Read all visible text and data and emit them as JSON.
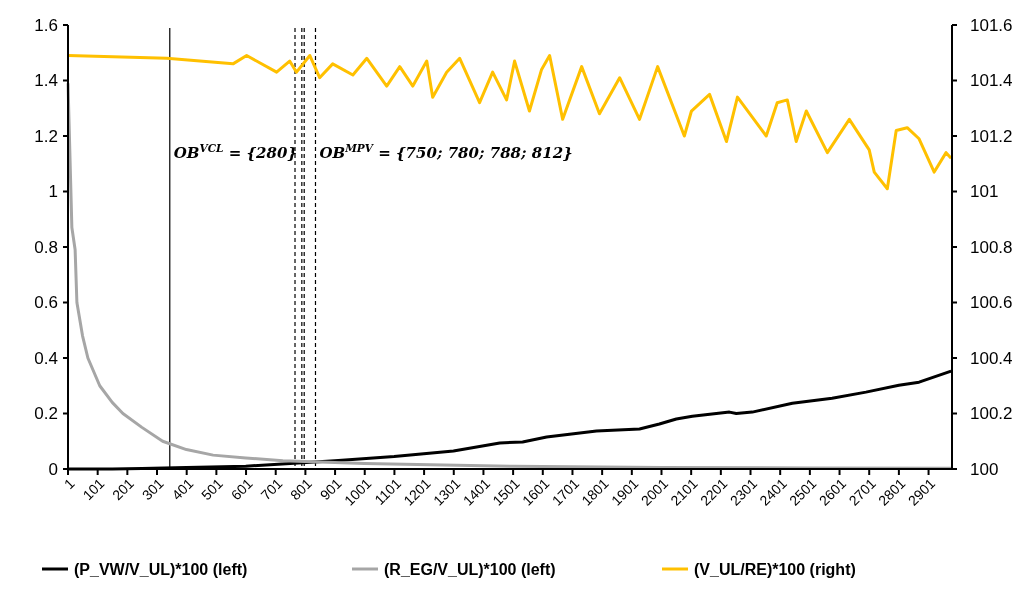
{
  "chart_data": {
    "type": "line",
    "xlim": [
      1,
      2980
    ],
    "xticks": [
      1,
      101,
      201,
      301,
      401,
      501,
      601,
      701,
      801,
      901,
      1001,
      1101,
      1201,
      1301,
      1401,
      1501,
      1601,
      1701,
      1801,
      1901,
      2001,
      2101,
      2201,
      2301,
      2401,
      2501,
      2601,
      2701,
      2801,
      2901
    ],
    "ylim": [
      0,
      1.6
    ],
    "yticks": [
      0,
      0.2,
      0.4,
      0.6,
      0.8,
      1,
      1.2,
      1.4,
      1.6
    ],
    "y2lim": [
      100,
      101.6
    ],
    "y2ticks": [
      100,
      100.2,
      100.4,
      100.6,
      100.8,
      101,
      101.2,
      101.4,
      101.6
    ],
    "series": [
      {
        "name": "(P_VW/V_UL)*100 (left)",
        "color": "#000000",
        "x": [
          1,
          150,
          250,
          400,
          600,
          750,
          900,
          1100,
          1300,
          1456,
          1533,
          1614,
          1782,
          1927,
          1994,
          2051,
          2105,
          2230,
          2253,
          2307,
          2442,
          2576,
          2690,
          2801,
          2869,
          2977
        ],
        "values": [
          0,
          0,
          0.002,
          0.005,
          0.01,
          0.02,
          0.03,
          0.045,
          0.065,
          0.094,
          0.097,
          0.115,
          0.137,
          0.144,
          0.162,
          0.18,
          0.19,
          0.205,
          0.2,
          0.205,
          0.237,
          0.255,
          0.277,
          0.302,
          0.313,
          0.353
        ]
      },
      {
        "name": "(R_EG/V_UL)*100 (left)",
        "color": "#a6a6a6",
        "x": [
          1,
          14,
          25,
          31,
          50,
          68,
          108,
          150,
          186,
          250,
          320,
          400,
          490,
          600,
          725,
          1000,
          1500,
          2000,
          2500,
          2977
        ],
        "values": [
          1.39,
          0.87,
          0.79,
          0.6,
          0.48,
          0.4,
          0.3,
          0.24,
          0.2,
          0.15,
          0.1,
          0.07,
          0.05,
          0.04,
          0.03,
          0.02,
          0.01,
          0.005,
          0.004,
          0.003
        ]
      },
      {
        "name": "(V_UL/RE)*100 (right)",
        "color": "#ffc000",
        "axis": "y2",
        "x": [
          1,
          334,
          557,
          603,
          704,
          748,
          771,
          816,
          849,
          893,
          961,
          1008,
          1075,
          1119,
          1163,
          1210,
          1230,
          1277,
          1321,
          1388,
          1432,
          1479,
          1506,
          1556,
          1597,
          1624,
          1668,
          1732,
          1792,
          1860,
          1927,
          1988,
          2078,
          2102,
          2163,
          2220,
          2257,
          2354,
          2391,
          2425,
          2455,
          2489,
          2560,
          2634,
          2701,
          2718,
          2762,
          2792,
          2829,
          2869,
          2920,
          2960,
          2977
        ],
        "values": [
          101.49,
          101.48,
          101.46,
          101.49,
          101.43,
          101.47,
          101.43,
          101.49,
          101.41,
          101.46,
          101.42,
          101.48,
          101.38,
          101.45,
          101.38,
          101.47,
          101.34,
          101.43,
          101.48,
          101.32,
          101.43,
          101.33,
          101.47,
          101.29,
          101.44,
          101.49,
          101.26,
          101.45,
          101.28,
          101.41,
          101.26,
          101.45,
          101.2,
          101.29,
          101.35,
          101.18,
          101.34,
          101.2,
          101.32,
          101.33,
          101.18,
          101.29,
          101.14,
          101.26,
          101.15,
          101.07,
          101.01,
          101.22,
          101.23,
          101.19,
          101.07,
          101.14,
          101.12
        ]
      }
    ],
    "ref_lines": [
      {
        "axis": "x",
        "value": 344,
        "color": "#000000",
        "line_style": "solid"
      },
      {
        "axis": "x",
        "value": 766,
        "color": "#000000",
        "line_style": "dashed"
      },
      {
        "axis": "x",
        "value": 789,
        "color": "#000000",
        "line_style": "dashed"
      },
      {
        "axis": "x",
        "value": 797,
        "color": "#000000",
        "line_style": "dashed"
      },
      {
        "axis": "x",
        "value": 835,
        "color": "#000000",
        "line_style": "dashed"
      }
    ],
    "annotations": [
      "OB$^{VCL}$ = {280}",
      "OB$^{MPV}$ = {750; 780; 788; 812}"
    ],
    "grid": false,
    "legend": "bottom",
    "line_style": "solid"
  }
}
